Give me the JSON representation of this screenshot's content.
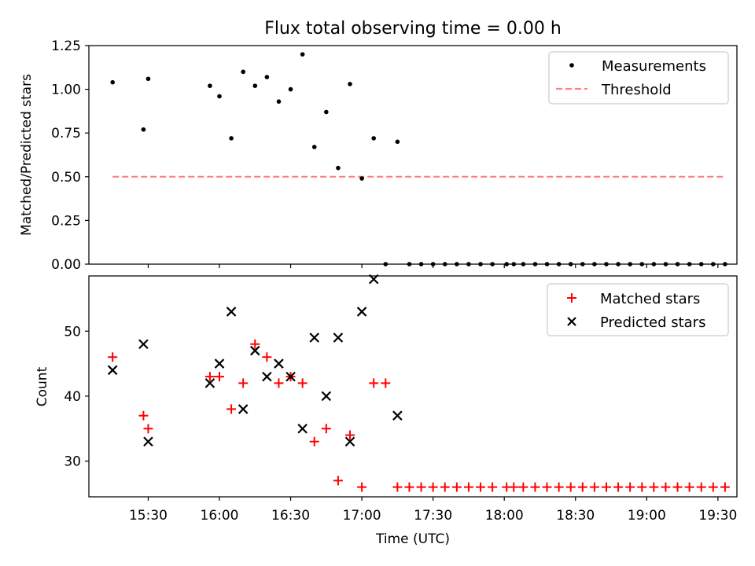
{
  "chart_data": [
    {
      "type": "scatter",
      "title": "Flux total observing time = 0.00 h",
      "xlabel": "",
      "ylabel": "Matched/Predicted stars",
      "ylim": [
        0,
        1.25
      ],
      "yticks": [
        "0.00",
        "0.25",
        "0.50",
        "0.75",
        "1.00",
        "1.25"
      ],
      "legend_position": "top-right",
      "series": [
        {
          "name": "Measurements",
          "style": "dot",
          "color": "#000000",
          "points": [
            [
              "15:15",
              1.04
            ],
            [
              "15:28",
              0.77
            ],
            [
              "15:30",
              1.06
            ],
            [
              "15:56",
              1.02
            ],
            [
              "16:00",
              0.96
            ],
            [
              "16:05",
              0.72
            ],
            [
              "16:10",
              1.1
            ],
            [
              "16:15",
              1.02
            ],
            [
              "16:20",
              1.07
            ],
            [
              "16:25",
              0.93
            ],
            [
              "16:30",
              1.0
            ],
            [
              "16:35",
              1.2
            ],
            [
              "16:40",
              0.67
            ],
            [
              "16:45",
              0.87
            ],
            [
              "16:50",
              0.55
            ],
            [
              "16:55",
              1.03
            ],
            [
              "17:00",
              0.49
            ],
            [
              "17:05",
              0.72
            ],
            [
              "17:10",
              0.0
            ],
            [
              "17:15",
              0.7
            ],
            [
              "17:20",
              0.0
            ],
            [
              "17:25",
              0.0
            ],
            [
              "17:30",
              0.0
            ],
            [
              "17:35",
              0.0
            ],
            [
              "17:40",
              0.0
            ],
            [
              "17:45",
              0.0
            ],
            [
              "17:50",
              0.0
            ],
            [
              "17:55",
              0.0
            ],
            [
              "18:01",
              0.0
            ],
            [
              "18:04",
              0.0
            ],
            [
              "18:08",
              0.0
            ],
            [
              "18:13",
              0.0
            ],
            [
              "18:18",
              0.0
            ],
            [
              "18:23",
              0.0
            ],
            [
              "18:28",
              0.0
            ],
            [
              "18:33",
              0.0
            ],
            [
              "18:38",
              0.0
            ],
            [
              "18:43",
              0.0
            ],
            [
              "18:48",
              0.0
            ],
            [
              "18:53",
              0.0
            ],
            [
              "18:58",
              0.0
            ],
            [
              "19:03",
              0.0
            ],
            [
              "19:08",
              0.0
            ],
            [
              "19:13",
              0.0
            ],
            [
              "19:18",
              0.0
            ],
            [
              "19:23",
              0.0
            ],
            [
              "19:28",
              0.0
            ],
            [
              "19:33",
              0.0
            ]
          ]
        },
        {
          "name": "Threshold",
          "style": "dashed-line",
          "color": "#ff8080",
          "points": [
            [
              "15:15",
              0.5
            ],
            [
              "19:33",
              0.5
            ]
          ]
        }
      ]
    },
    {
      "type": "scatter",
      "title": "",
      "xlabel": "Time (UTC)",
      "ylabel": "Count",
      "ylim": [
        24.5,
        58.5
      ],
      "yticks": [
        "30",
        "40",
        "50"
      ],
      "xlim": [
        "15:05",
        "19:38"
      ],
      "xticks": [
        "15:30",
        "16:00",
        "16:30",
        "17:00",
        "17:30",
        "18:00",
        "18:30",
        "19:00",
        "19:30"
      ],
      "legend_position": "top-right",
      "series": [
        {
          "name": "Matched stars",
          "marker": "plus",
          "color": "#ff0000",
          "points": [
            [
              "15:15",
              46
            ],
            [
              "15:28",
              37
            ],
            [
              "15:30",
              35
            ],
            [
              "15:56",
              43
            ],
            [
              "16:00",
              43
            ],
            [
              "16:05",
              38
            ],
            [
              "16:10",
              42
            ],
            [
              "16:15",
              48
            ],
            [
              "16:20",
              46
            ],
            [
              "16:25",
              42
            ],
            [
              "16:30",
              43
            ],
            [
              "16:35",
              42
            ],
            [
              "16:40",
              33
            ],
            [
              "16:45",
              35
            ],
            [
              "16:50",
              27
            ],
            [
              "16:55",
              34
            ],
            [
              "17:00",
              26
            ],
            [
              "17:05",
              42
            ],
            [
              "17:10",
              42
            ],
            [
              "17:15",
              26
            ],
            [
              "17:20",
              26
            ],
            [
              "17:25",
              26
            ],
            [
              "17:30",
              26
            ],
            [
              "17:35",
              26
            ],
            [
              "17:40",
              26
            ],
            [
              "17:45",
              26
            ],
            [
              "17:50",
              26
            ],
            [
              "17:55",
              26
            ],
            [
              "18:01",
              26
            ],
            [
              "18:04",
              26
            ],
            [
              "18:08",
              26
            ],
            [
              "18:13",
              26
            ],
            [
              "18:18",
              26
            ],
            [
              "18:23",
              26
            ],
            [
              "18:28",
              26
            ],
            [
              "18:33",
              26
            ],
            [
              "18:38",
              26
            ],
            [
              "18:43",
              26
            ],
            [
              "18:48",
              26
            ],
            [
              "18:53",
              26
            ],
            [
              "18:58",
              26
            ],
            [
              "19:03",
              26
            ],
            [
              "19:08",
              26
            ],
            [
              "19:13",
              26
            ],
            [
              "19:18",
              26
            ],
            [
              "19:23",
              26
            ],
            [
              "19:28",
              26
            ],
            [
              "19:33",
              26
            ]
          ]
        },
        {
          "name": "Predicted stars",
          "marker": "x",
          "color": "#000000",
          "points": [
            [
              "15:15",
              44
            ],
            [
              "15:28",
              48
            ],
            [
              "15:30",
              33
            ],
            [
              "15:56",
              42
            ],
            [
              "16:00",
              45
            ],
            [
              "16:05",
              53
            ],
            [
              "16:10",
              38
            ],
            [
              "16:15",
              47
            ],
            [
              "16:20",
              43
            ],
            [
              "16:25",
              45
            ],
            [
              "16:30",
              43
            ],
            [
              "16:35",
              35
            ],
            [
              "16:40",
              49
            ],
            [
              "16:45",
              40
            ],
            [
              "16:50",
              49
            ],
            [
              "16:55",
              33
            ],
            [
              "17:00",
              53
            ],
            [
              "17:05",
              58
            ],
            [
              "17:15",
              37
            ]
          ]
        }
      ]
    }
  ]
}
